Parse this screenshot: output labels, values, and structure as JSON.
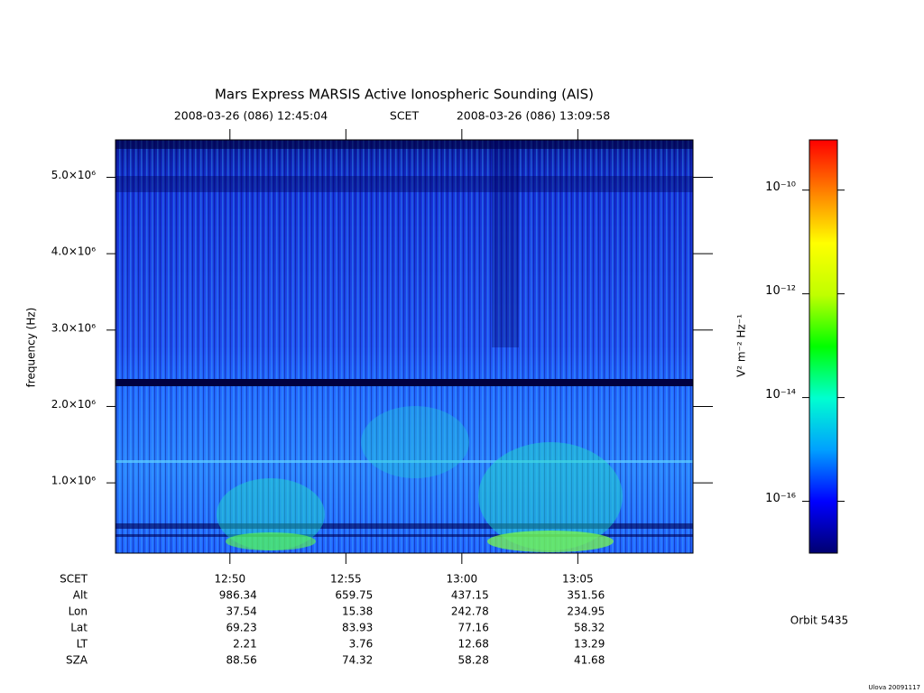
{
  "chart_data": {
    "type": "spectrogram",
    "title": "Mars Express MARSIS Active Ionospheric Sounding (AIS)",
    "start_time": "2008-03-26 (086) 12:45:04",
    "time_system": "SCET",
    "end_time": "2008-03-26 (086) 13:09:58",
    "y_label": "frequency (Hz)",
    "ylim": [
      80000,
      5490000
    ],
    "yticks": [
      {
        "value": 1000000,
        "label": "1.0×10⁶"
      },
      {
        "value": 2000000,
        "label": "2.0×10⁶"
      },
      {
        "value": 3000000,
        "label": "3.0×10⁶"
      },
      {
        "value": 4000000,
        "label": "4.0×10⁶"
      },
      {
        "value": 5000000,
        "label": "5.0×10⁶"
      }
    ],
    "xlim": [
      45904,
      47398
    ],
    "xticks": [
      {
        "value": 46200,
        "label": "12:50"
      },
      {
        "value": 46500,
        "label": "12:55"
      },
      {
        "value": 46800,
        "label": "13:00"
      },
      {
        "value": 47100,
        "label": "13:05"
      }
    ],
    "ephemeris": {
      "time_label": "SCET",
      "labels": [
        "Alt",
        "Lon",
        "Lat",
        "LT",
        "SZA"
      ],
      "rows": [
        [
          986.34,
          659.75,
          437.15,
          351.56
        ],
        [
          37.54,
          15.38,
          242.78,
          234.95
        ],
        [
          69.23,
          83.93,
          77.16,
          58.32
        ],
        [
          2.21,
          3.76,
          12.68,
          13.29
        ],
        [
          88.56,
          74.32,
          58.28,
          41.68
        ]
      ]
    },
    "colorbar": {
      "label": "V² m⁻² Hz⁻¹",
      "log_scale": true,
      "clim": [
        1e-17,
        9.3e-10
      ],
      "ticks": [
        {
          "value": 1e-10,
          "label": "10⁻¹⁰"
        },
        {
          "value": 1e-12,
          "label": "10⁻¹²"
        },
        {
          "value": 1e-14,
          "label": "10⁻¹⁴"
        },
        {
          "value": 1e-16,
          "label": "10⁻¹⁶"
        }
      ],
      "colormap": [
        "#000070",
        "#0000ff",
        "#00a0ff",
        "#00ffd0",
        "#00ff00",
        "#c0ff00",
        "#ffff00",
        "#ff8000",
        "#ff0000"
      ]
    },
    "orbit": "Orbit 5435",
    "footer": "Ulova 20091117"
  }
}
